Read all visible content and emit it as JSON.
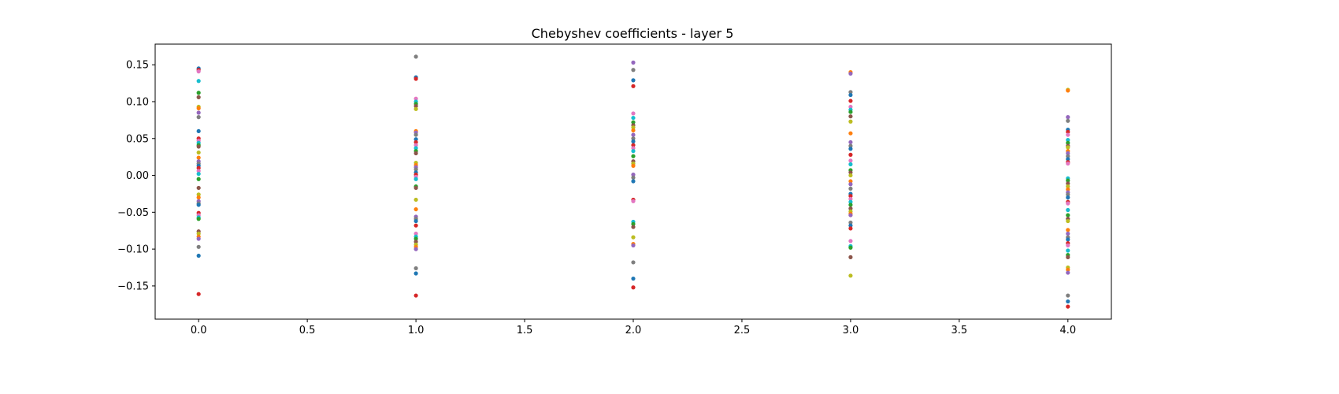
{
  "chart_data": {
    "type": "scatter",
    "title": "Chebyshev coefficients - layer 5",
    "xlabel": "",
    "ylabel": "",
    "xlim": [
      -0.2,
      4.2
    ],
    "ylim": [
      -0.195,
      0.178
    ],
    "x_ticks": [
      0.0,
      0.5,
      1.0,
      1.5,
      2.0,
      2.5,
      3.0,
      3.5,
      4.0
    ],
    "x_tick_labels": [
      "0.0",
      "0.5",
      "1.0",
      "1.5",
      "2.0",
      "2.5",
      "3.0",
      "3.5",
      "4.0"
    ],
    "y_ticks": [
      -0.15,
      -0.1,
      -0.05,
      0.0,
      0.05,
      0.1,
      0.15
    ],
    "y_tick_labels": [
      "−0.15",
      "−0.10",
      "−0.05",
      "0.00",
      "0.05",
      "0.10",
      "0.15"
    ],
    "grid": false,
    "legend": "none",
    "palette": [
      "#1f77b4",
      "#ff7f0e",
      "#2ca02c",
      "#d62728",
      "#9467bd",
      "#8c564b",
      "#e377c2",
      "#7f7f7f",
      "#bcbd22",
      "#17becf"
    ],
    "series": [
      {
        "x": 0,
        "y": [
          0.145,
          0.143,
          0.141,
          0.128,
          0.112,
          0.106,
          0.093,
          0.091,
          0.085,
          0.079,
          0.06,
          0.05,
          0.047,
          0.044,
          0.041,
          0.039,
          0.031,
          0.024,
          0.019,
          0.016,
          0.013,
          0.01,
          0.006,
          0.002,
          -0.005,
          -0.017,
          -0.026,
          -0.03,
          -0.035,
          -0.038,
          -0.04,
          -0.051,
          -0.054,
          -0.057,
          -0.059,
          -0.076,
          -0.079,
          -0.083,
          -0.086,
          -0.097,
          -0.109,
          -0.161
        ]
      },
      {
        "x": 1,
        "y": [
          0.161,
          0.133,
          0.131,
          0.104,
          0.1,
          0.097,
          0.094,
          0.09,
          0.06,
          0.058,
          0.055,
          0.049,
          0.045,
          0.041,
          0.037,
          0.033,
          0.03,
          0.017,
          0.014,
          0.011,
          0.008,
          0.004,
          0.001,
          -0.002,
          -0.005,
          -0.015,
          -0.017,
          -0.033,
          -0.046,
          -0.056,
          -0.059,
          -0.062,
          -0.068,
          -0.079,
          -0.083,
          -0.086,
          -0.09,
          -0.094,
          -0.097,
          -0.1,
          -0.126,
          -0.133,
          -0.163
        ]
      },
      {
        "x": 2,
        "y": [
          0.153,
          0.143,
          0.129,
          0.121,
          0.084,
          0.078,
          0.072,
          0.068,
          0.065,
          0.061,
          0.055,
          0.05,
          0.046,
          0.041,
          0.037,
          0.033,
          0.026,
          0.019,
          0.016,
          0.013,
          0.001,
          -0.003,
          -0.008,
          -0.033,
          -0.035,
          -0.063,
          -0.066,
          -0.07,
          -0.084,
          -0.093,
          -0.095,
          -0.118,
          -0.14,
          -0.152
        ]
      },
      {
        "x": 3,
        "y": [
          0.14,
          0.138,
          0.113,
          0.109,
          0.101,
          0.093,
          0.089,
          0.086,
          0.08,
          0.073,
          0.057,
          0.045,
          0.04,
          0.036,
          0.028,
          0.02,
          0.015,
          0.007,
          0.004,
          0.0,
          -0.008,
          -0.012,
          -0.018,
          -0.025,
          -0.028,
          -0.032,
          -0.036,
          -0.04,
          -0.045,
          -0.049,
          -0.052,
          -0.054,
          -0.064,
          -0.068,
          -0.072,
          -0.089,
          -0.096,
          -0.098,
          -0.111,
          -0.136
        ]
      },
      {
        "x": 4,
        "y": [
          0.116,
          0.115,
          0.079,
          0.074,
          0.062,
          0.059,
          0.055,
          0.048,
          0.044,
          0.04,
          0.038,
          0.033,
          0.03,
          0.026,
          0.022,
          0.018,
          0.016,
          -0.004,
          -0.007,
          -0.011,
          -0.015,
          -0.019,
          -0.023,
          -0.026,
          -0.03,
          -0.036,
          -0.038,
          -0.047,
          -0.054,
          -0.059,
          -0.062,
          -0.074,
          -0.079,
          -0.084,
          -0.087,
          -0.092,
          -0.095,
          -0.102,
          -0.108,
          -0.111,
          -0.125,
          -0.128,
          -0.132,
          -0.163,
          -0.171,
          -0.178
        ]
      }
    ]
  }
}
